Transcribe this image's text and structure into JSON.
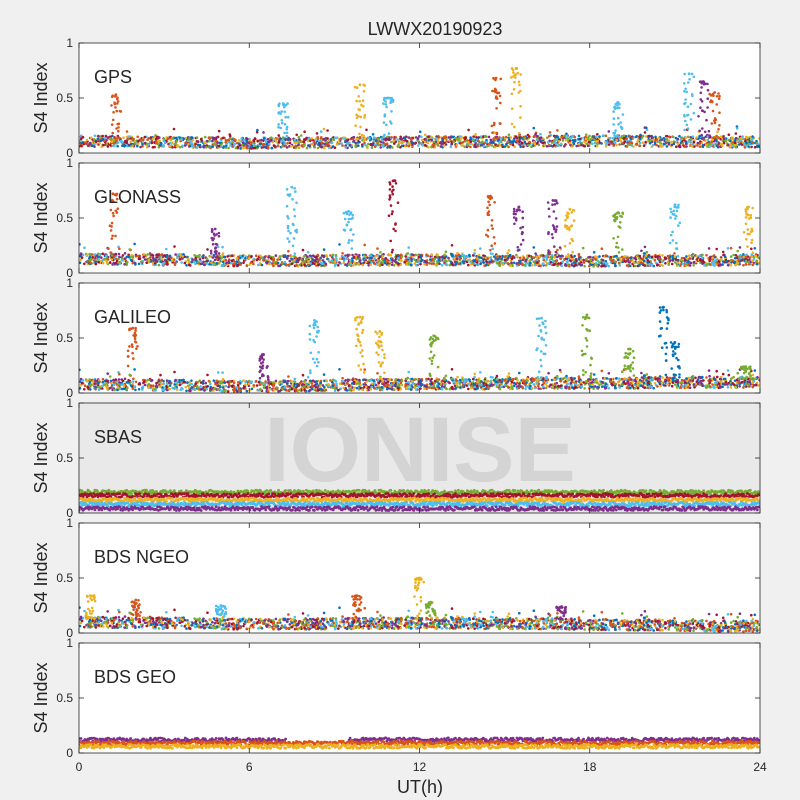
{
  "title": "LWWX20190923",
  "xlabel": "UT(h)",
  "ylabel": "S4 Index",
  "watermark": "IONISE",
  "x_ticks": [
    "0",
    "6",
    "12",
    "18",
    "24"
  ],
  "y_ticks": [
    "0",
    "0.5",
    "1"
  ],
  "palette": [
    "#0072bd",
    "#d95319",
    "#edb120",
    "#7e2f8e",
    "#77ac30",
    "#4dbeee",
    "#a2142f"
  ],
  "chart_data": [
    {
      "type": "scatter",
      "label": "GPS",
      "xlim": [
        0,
        24
      ],
      "ylim": [
        0,
        1
      ],
      "grid": false,
      "baseline": [
        [
          0,
          0.11
        ],
        [
          6,
          0.09
        ],
        [
          12,
          0.1
        ],
        [
          18,
          0.11
        ],
        [
          24,
          0.1
        ]
      ],
      "spikes": [
        {
          "x": 1.3,
          "y": 0.53,
          "color": "#d95319"
        },
        {
          "x": 7.2,
          "y": 0.45,
          "color": "#4dbeee"
        },
        {
          "x": 9.9,
          "y": 0.62,
          "color": "#edb120"
        },
        {
          "x": 10.9,
          "y": 0.5,
          "color": "#4dbeee"
        },
        {
          "x": 14.7,
          "y": 0.68,
          "color": "#d95319"
        },
        {
          "x": 15.4,
          "y": 0.77,
          "color": "#edb120"
        },
        {
          "x": 19.0,
          "y": 0.46,
          "color": "#4dbeee"
        },
        {
          "x": 21.5,
          "y": 0.72,
          "color": "#4dbeee"
        },
        {
          "x": 22.0,
          "y": 0.65,
          "color": "#7e2f8e"
        },
        {
          "x": 22.4,
          "y": 0.55,
          "color": "#d95319"
        }
      ]
    },
    {
      "type": "scatter",
      "label": "GLONASS",
      "xlim": [
        0,
        24
      ],
      "ylim": [
        0,
        1
      ],
      "grid": false,
      "baseline": [
        [
          0,
          0.13
        ],
        [
          6,
          0.11
        ],
        [
          12,
          0.12
        ],
        [
          18,
          0.11
        ],
        [
          24,
          0.12
        ]
      ],
      "spikes": [
        {
          "x": 1.2,
          "y": 0.72,
          "color": "#d95319"
        },
        {
          "x": 4.8,
          "y": 0.4,
          "color": "#7e2f8e"
        },
        {
          "x": 7.5,
          "y": 0.78,
          "color": "#4dbeee"
        },
        {
          "x": 9.5,
          "y": 0.56,
          "color": "#4dbeee"
        },
        {
          "x": 11.1,
          "y": 0.84,
          "color": "#a2142f"
        },
        {
          "x": 14.5,
          "y": 0.7,
          "color": "#d95319"
        },
        {
          "x": 15.5,
          "y": 0.6,
          "color": "#7e2f8e"
        },
        {
          "x": 16.7,
          "y": 0.66,
          "color": "#7e2f8e"
        },
        {
          "x": 17.3,
          "y": 0.58,
          "color": "#edb120"
        },
        {
          "x": 19.0,
          "y": 0.55,
          "color": "#77ac30"
        },
        {
          "x": 21.0,
          "y": 0.62,
          "color": "#4dbeee"
        },
        {
          "x": 23.6,
          "y": 0.6,
          "color": "#edb120"
        }
      ]
    },
    {
      "type": "scatter",
      "label": "GALILEO",
      "xlim": [
        0,
        24
      ],
      "ylim": [
        0,
        1
      ],
      "grid": false,
      "baseline": [
        [
          0,
          0.08
        ],
        [
          6,
          0.06
        ],
        [
          12,
          0.08
        ],
        [
          18,
          0.09
        ],
        [
          24,
          0.1
        ]
      ],
      "spikes": [
        {
          "x": 1.9,
          "y": 0.59,
          "color": "#d95319"
        },
        {
          "x": 6.5,
          "y": 0.35,
          "color": "#7e2f8e"
        },
        {
          "x": 8.3,
          "y": 0.66,
          "color": "#4dbeee"
        },
        {
          "x": 9.9,
          "y": 0.69,
          "color": "#edb120"
        },
        {
          "x": 10.6,
          "y": 0.56,
          "color": "#edb120"
        },
        {
          "x": 12.5,
          "y": 0.52,
          "color": "#77ac30"
        },
        {
          "x": 16.3,
          "y": 0.68,
          "color": "#4dbeee"
        },
        {
          "x": 17.9,
          "y": 0.71,
          "color": "#77ac30"
        },
        {
          "x": 19.4,
          "y": 0.4,
          "color": "#77ac30"
        },
        {
          "x": 20.6,
          "y": 0.78,
          "color": "#0072bd"
        },
        {
          "x": 21.0,
          "y": 0.46,
          "color": "#0072bd"
        },
        {
          "x": 23.5,
          "y": 0.24,
          "color": "#77ac30"
        }
      ]
    },
    {
      "type": "scatter",
      "label": "SBAS",
      "xlim": [
        0,
        24
      ],
      "ylim": [
        0,
        1
      ],
      "grid": false,
      "bands": [
        {
          "color": "#77ac30",
          "level": 0.19
        },
        {
          "color": "#a2142f",
          "level": 0.16
        },
        {
          "color": "#edb120",
          "level": 0.12
        },
        {
          "color": "#4dbeee",
          "level": 0.08
        },
        {
          "color": "#7e2f8e",
          "level": 0.04
        }
      ]
    },
    {
      "type": "scatter",
      "label": "BDS NGEO",
      "xlim": [
        0,
        24
      ],
      "ylim": [
        0,
        1
      ],
      "grid": false,
      "baseline": [
        [
          0,
          0.1
        ],
        [
          6,
          0.08
        ],
        [
          12,
          0.09
        ],
        [
          18,
          0.08
        ],
        [
          24,
          0.06
        ]
      ],
      "spikes": [
        {
          "x": 0.4,
          "y": 0.34,
          "color": "#edb120"
        },
        {
          "x": 2.0,
          "y": 0.3,
          "color": "#d95319"
        },
        {
          "x": 5.0,
          "y": 0.25,
          "color": "#4dbeee"
        },
        {
          "x": 9.8,
          "y": 0.34,
          "color": "#d95319"
        },
        {
          "x": 12.0,
          "y": 0.5,
          "color": "#edb120"
        },
        {
          "x": 12.4,
          "y": 0.28,
          "color": "#77ac30"
        },
        {
          "x": 17.0,
          "y": 0.24,
          "color": "#7e2f8e"
        }
      ]
    },
    {
      "type": "scatter",
      "label": "BDS GEO",
      "xlim": [
        0,
        24
      ],
      "ylim": [
        0,
        1
      ],
      "grid": false,
      "bands": [
        {
          "color": "#7e2f8e",
          "level": 0.12,
          "gap": [
            7.3,
            9.5
          ]
        },
        {
          "color": "#d95319",
          "level": 0.09
        },
        {
          "color": "#edb120",
          "level": 0.06
        }
      ]
    }
  ]
}
